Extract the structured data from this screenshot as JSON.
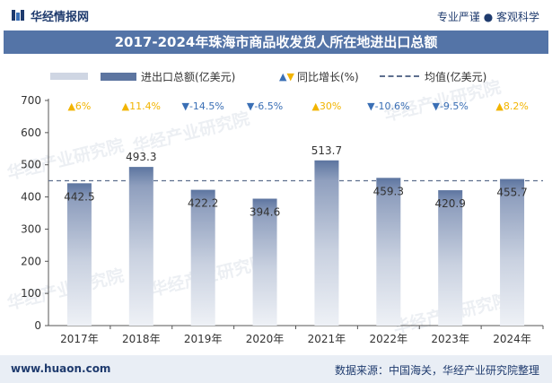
{
  "header": {
    "brand": "华经情报网",
    "tagline": "专业严谨 ● 客观科学"
  },
  "chart_data": {
    "type": "bar",
    "title": "2017-2024年珠海市商品收发货人所在地进出口总额",
    "categories": [
      "2017年",
      "2018年",
      "2019年",
      "2020年",
      "2021年",
      "2022年",
      "2023年",
      "2024年"
    ],
    "series": [
      {
        "name": "进出口总额(亿美元)",
        "values": [
          442.5,
          493.3,
          422.2,
          394.6,
          513.7,
          459.3,
          420.9,
          455.7
        ]
      }
    ],
    "growth": {
      "name": "同比增长(%)",
      "labels": [
        "6%",
        "11.4%",
        "-14.5%",
        "-6.5%",
        "30%",
        "-10.6%",
        "-9.5%",
        "8.2%"
      ],
      "directions": [
        "up",
        "up",
        "down",
        "down",
        "up",
        "down",
        "down",
        "up"
      ]
    },
    "average": {
      "name": "均值(亿美元)",
      "value": 450.3
    },
    "yticks": [
      0,
      100,
      200,
      300,
      400,
      500,
      600,
      700
    ],
    "ylim": [
      0,
      700
    ],
    "legend_placement": "top",
    "colors": {
      "bar_dark": "#5d75a0",
      "bar_light": "#e6eaf2",
      "up": "#f2b400",
      "down": "#3a6fb5",
      "title_bg": "#5474a7"
    }
  },
  "legend": {
    "bar_label": "进出口总额(亿美元)",
    "growth_label": "同比增长(%)",
    "avg_label": "均值(亿美元)"
  },
  "watermark": "华经产业研究院",
  "footer": {
    "website": "www.huaon.com",
    "source": "数据来源：中国海关，华经产业研究院整理"
  }
}
